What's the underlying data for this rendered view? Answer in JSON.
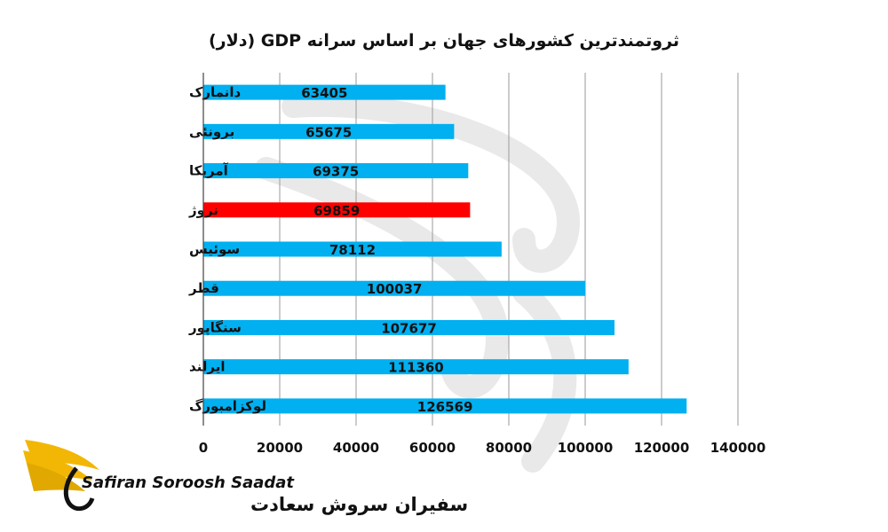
{
  "chart_data": {
    "type": "bar",
    "orientation": "horizontal",
    "title": "ثروتمندترین کشورهای جهان بر اساس سرانه GDP (دلار)",
    "categories": [
      "دانمارک",
      "برونئی",
      "آمریکا",
      "نروژ",
      "سوئیس",
      "قطر",
      "سنگاپور",
      "ایرلند",
      "لوکزامبورگ"
    ],
    "values": [
      63405,
      65675,
      69375,
      69859,
      78112,
      100037,
      107677,
      111360,
      126569
    ],
    "data_labels": [
      "63405",
      "65675",
      "69375",
      "69859",
      "78112",
      "100037",
      "107677",
      "111360",
      "126569"
    ],
    "highlight_index": 3,
    "xlim": [
      0,
      140000
    ],
    "x_ticks": [
      0,
      20000,
      40000,
      60000,
      80000,
      100000,
      120000,
      140000
    ],
    "x_tick_labels": [
      "0",
      "20000",
      "40000",
      "60000",
      "80000",
      "100000",
      "120000",
      "140000"
    ],
    "grid": true,
    "legend": "none",
    "colors": {
      "bar": "#00b0f0",
      "highlight": "#ff0000"
    }
  },
  "logo": {
    "text_en": "Safiran Soroosh Saadat",
    "text_fa": "سفیران سروش سعادت",
    "colors": {
      "wing": "#f2b705",
      "text": "#111111"
    }
  }
}
